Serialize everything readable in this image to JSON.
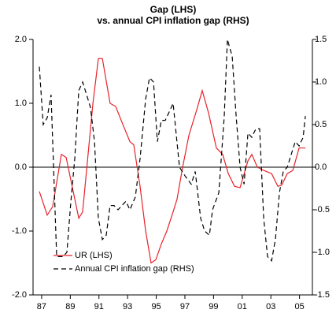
{
  "chart_data": {
    "type": "line",
    "title": "Gap (LHS)",
    "subtitle": "vs. annual CPI inflation gap (RHS)",
    "xlim": [
      1986.4,
      2005.9
    ],
    "xticks": [
      {
        "value": 1987,
        "label": "87"
      },
      {
        "value": 1989,
        "label": "89"
      },
      {
        "value": 1991,
        "label": "91"
      },
      {
        "value": 1993,
        "label": "93"
      },
      {
        "value": 1995,
        "label": "95"
      },
      {
        "value": 1997,
        "label": "97"
      },
      {
        "value": 1999,
        "label": "99"
      },
      {
        "value": 2001,
        "label": "01"
      },
      {
        "value": 2003,
        "label": "03"
      },
      {
        "value": 2005,
        "label": "05"
      }
    ],
    "ylim": [
      -2,
      2
    ],
    "yticks": [
      {
        "value": 2,
        "label": "2.0"
      },
      {
        "value": 1,
        "label": "1.0"
      },
      {
        "value": 0,
        "label": "0.0"
      },
      {
        "value": -1,
        "label": "-1.0"
      },
      {
        "value": -2,
        "label": "-2.0"
      }
    ],
    "y2lim": [
      -1.5,
      1.5
    ],
    "y2ticks": [
      1.5,
      {
        "value": 1,
        "label": "1.0"
      },
      0.5,
      {
        "value": 0,
        "label": "0.0"
      },
      -0.5,
      {
        "value": -1,
        "label": "-1.0"
      },
      -1.5
    ],
    "legend": "lower left",
    "series": [
      {
        "name": "UR (LHS)",
        "color": "#e8222a",
        "dash": false,
        "x": [
          1986.84,
          1987.39,
          1987.77,
          1988.38,
          1988.71,
          1989.59,
          1989.86,
          1990.58,
          1990.96,
          1991.24,
          1991.78,
          1992.17,
          1992.61,
          1993.16,
          1993.43,
          1993.87,
          1994.26,
          1994.64,
          1994.97,
          1995.36,
          1995.74,
          1996.18,
          1996.45,
          1996.84,
          1997.28,
          1997.83,
          1998.21,
          1998.65,
          1999.2,
          1999.64,
          2000.03,
          2000.47,
          2000.85,
          2001.4,
          2001.67,
          2002.06,
          2002.5,
          2003.05,
          2003.49,
          2003.76,
          2004.15,
          2004.53,
          2004.97,
          2005.41
        ],
        "values": [
          -0.38,
          -0.75,
          -0.62,
          0.2,
          0.15,
          -0.8,
          -0.7,
          1.0,
          1.7,
          1.7,
          1.0,
          0.95,
          0.7,
          0.4,
          0.35,
          -0.3,
          -1.0,
          -1.5,
          -1.45,
          -1.2,
          -1.0,
          -0.7,
          -0.5,
          0.0,
          0.5,
          0.9,
          1.2,
          0.85,
          0.3,
          0.2,
          -0.1,
          -0.3,
          -0.32,
          0.1,
          0.2,
          0.0,
          -0.05,
          -0.1,
          -0.3,
          -0.28,
          -0.1,
          -0.05,
          0.3,
          0.3
        ]
      },
      {
        "name": "Annual CPI inflation gap (RHS)",
        "color": "#000000",
        "dash": true,
        "axis": "y2",
        "x": [
          1986.84,
          1987.11,
          1987.39,
          1987.66,
          1988.05,
          1988.49,
          1988.76,
          1989.04,
          1989.31,
          1989.59,
          1989.86,
          1990.14,
          1990.41,
          1990.69,
          1990.96,
          1991.24,
          1991.51,
          1991.78,
          1992.06,
          1992.33,
          1992.88,
          1993.16,
          1993.54,
          1993.87,
          1994.26,
          1994.53,
          1994.81,
          1995.08,
          1995.36,
          1995.63,
          1995.91,
          1996.18,
          1996.62,
          1997.0,
          1997.44,
          1997.72,
          1998.1,
          1998.38,
          1998.71,
          1998.93,
          1999.37,
          1999.75,
          1999.97,
          2000.3,
          2000.58,
          2000.85,
          2001.13,
          2001.4,
          2001.67,
          2001.95,
          2002.22,
          2002.5,
          2002.77,
          2003.05,
          2003.32,
          2003.6,
          2003.87,
          2004.15,
          2004.42,
          2004.7,
          2004.97,
          2005.25,
          2005.41
        ],
        "values": [
          1.18,
          0.5,
          0.58,
          0.85,
          -1.05,
          -1.05,
          -1.0,
          -0.4,
          0.1,
          0.9,
          1.0,
          0.85,
          0.7,
          0.3,
          -0.6,
          -0.85,
          -0.8,
          -0.45,
          -0.45,
          -0.5,
          -0.4,
          -0.5,
          -0.35,
          0.1,
          0.8,
          1.05,
          1.0,
          0.3,
          0.55,
          0.55,
          0.65,
          0.75,
          0.0,
          -0.1,
          -0.2,
          -0.05,
          -0.6,
          -0.75,
          -0.8,
          -0.5,
          -0.3,
          0.6,
          1.5,
          1.3,
          0.6,
          0.0,
          -0.2,
          0.4,
          0.35,
          0.45,
          0.45,
          -0.6,
          -1.05,
          -1.1,
          -0.85,
          -0.3,
          -0.05,
          0.0,
          0.15,
          0.3,
          0.25,
          0.35,
          0.6
        ]
      }
    ]
  }
}
